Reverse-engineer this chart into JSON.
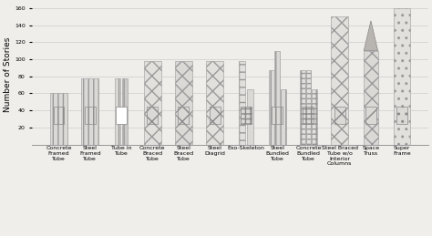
{
  "categories": [
    "Concrete\nFramed\nTube",
    "Steel\nFramed\nTube",
    "Tube in\nTube",
    "Concrete\nBraced\nTube",
    "Steel\nBraced\nTube",
    "Steel\nDiagrid",
    "Exo-Skeleton",
    "Steel\nBundled\nTube",
    "Concrete\nBundled\nTube",
    "Steel Braced\nTube w/o\nInterior\nColumns",
    "Space\nTruss",
    "Super\nFrame"
  ],
  "ylabel": "Number of Stories",
  "ylim": [
    0,
    165
  ],
  "yticks": [
    20,
    40,
    60,
    80,
    100,
    120,
    140,
    160
  ],
  "background_color": "#f0eeeb",
  "grid_color": "#cccccc",
  "label_fontsize": 4.5,
  "ylabel_fontsize": 6.5
}
